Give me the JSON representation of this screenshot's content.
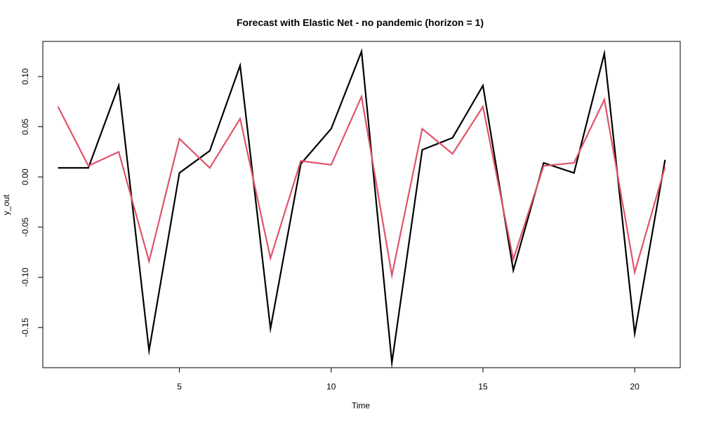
{
  "chart_data": {
    "type": "line",
    "title": "Forecast with Elastic Net - no pandemic (horizon = 1)",
    "xlabel": "Time",
    "ylabel": "y_out",
    "xlim": [
      0.5,
      21.5
    ],
    "ylim": [
      -0.19,
      0.135
    ],
    "xticks": [
      5,
      10,
      15,
      20
    ],
    "xtick_labels": [
      "5",
      "10",
      "15",
      "20"
    ],
    "yticks": [
      -0.15,
      -0.1,
      -0.05,
      0.0,
      0.05,
      0.1
    ],
    "ytick_labels": [
      "-0.15",
      "-0.10",
      "-0.05",
      "0.00",
      "0.05",
      "0.10"
    ],
    "grid": false,
    "x": [
      1,
      2,
      3,
      4,
      5,
      6,
      7,
      8,
      9,
      10,
      11,
      12,
      13,
      14,
      15,
      16,
      17,
      18,
      19,
      20,
      21
    ],
    "series": [
      {
        "color": "#000000",
        "values": [
          0.009,
          0.009,
          0.091,
          -0.173,
          0.004,
          0.026,
          0.111,
          -0.151,
          0.013,
          0.048,
          0.125,
          -0.185,
          0.027,
          0.039,
          0.091,
          -0.093,
          0.014,
          0.004,
          0.123,
          -0.156,
          0.017
        ]
      },
      {
        "color": "#DF536B",
        "values": [
          0.07,
          0.011,
          0.025,
          -0.084,
          0.038,
          0.009,
          0.058,
          -0.081,
          0.016,
          0.012,
          0.08,
          -0.098,
          0.048,
          0.023,
          0.07,
          -0.082,
          0.011,
          0.014,
          0.077,
          -0.095,
          0.01
        ]
      }
    ]
  }
}
